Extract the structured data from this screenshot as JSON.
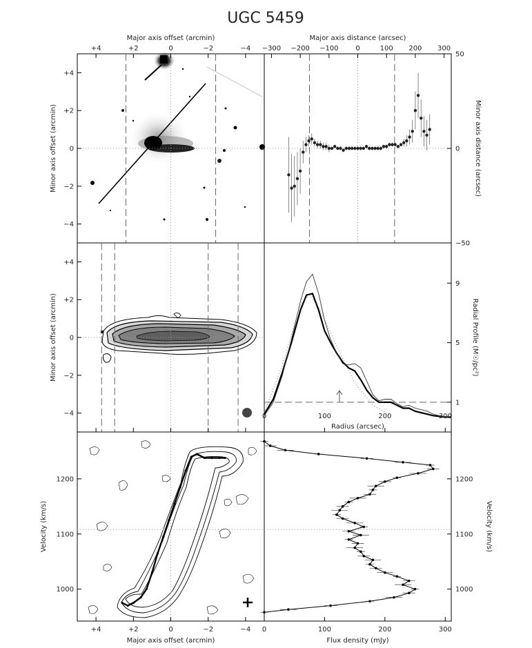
{
  "title": "UGC 5459",
  "chart_data": [
    {
      "type": "image",
      "panel": "optical",
      "xlabel_top": "Major axis offset (arcmin)",
      "ylabel": "Minor axis offset (arcmin)",
      "xlim": [
        5,
        -5
      ],
      "ylim": [
        -5,
        5
      ],
      "xticks": [
        {
          "v": 4,
          "t": "+4"
        },
        {
          "v": 2,
          "t": "+2"
        },
        {
          "v": 0,
          "t": "0"
        },
        {
          "v": -2,
          "t": "−2"
        },
        {
          "v": -4,
          "t": "−4"
        }
      ],
      "yticks": [
        {
          "v": 4,
          "t": "+4"
        },
        {
          "v": 2,
          "t": "+2"
        },
        {
          "v": 0,
          "t": "0"
        },
        {
          "v": -2,
          "t": "−2"
        },
        {
          "v": -4,
          "t": "−4"
        }
      ]
    },
    {
      "type": "scatter",
      "panel": "warp",
      "xlabel_top": "Major axis distance (arcsec)",
      "ylabel_right": "Minor axis distance (arcsec)",
      "xlim": [
        -325,
        325
      ],
      "ylim": [
        -50,
        50
      ],
      "xticks": [
        {
          "v": -300,
          "t": "−300"
        },
        {
          "v": -200,
          "t": "−200"
        },
        {
          "v": -100,
          "t": "−100"
        },
        {
          "v": 0,
          "t": "0"
        },
        {
          "v": 100,
          "t": "100"
        },
        {
          "v": 200,
          "t": "200"
        },
        {
          "v": 300,
          "t": "300"
        }
      ],
      "yticks": [
        {
          "v": 50,
          "t": "50"
        },
        {
          "v": 0,
          "t": "0"
        },
        {
          "v": -50,
          "t": "−50"
        }
      ],
      "x": [
        -240,
        -230,
        -220,
        -210,
        -200,
        -190,
        -180,
        -170,
        -160,
        -150,
        -140,
        -130,
        -120,
        -110,
        -100,
        -90,
        -80,
        -70,
        -60,
        -50,
        -40,
        -30,
        -20,
        -10,
        0,
        10,
        20,
        30,
        40,
        50,
        60,
        70,
        80,
        90,
        100,
        110,
        120,
        130,
        140,
        150,
        160,
        170,
        180,
        190,
        200,
        210,
        220,
        230,
        240,
        250
      ],
      "y": [
        -14,
        -21,
        -20,
        -16,
        -12,
        -2,
        2,
        4,
        5,
        3,
        2,
        2,
        1,
        1,
        0,
        0,
        1,
        0,
        0,
        -1,
        0,
        0,
        0,
        0,
        0,
        0,
        0,
        1,
        0,
        0,
        0,
        0,
        0,
        1,
        1,
        2,
        2,
        2,
        1,
        2,
        3,
        4,
        6,
        9,
        20,
        28,
        16,
        9,
        7,
        10
      ],
      "err": [
        20,
        18,
        16,
        14,
        12,
        6,
        4,
        3,
        3,
        2,
        2,
        2,
        2,
        2,
        2,
        1,
        1,
        1,
        1,
        1,
        1,
        1,
        1,
        1,
        1,
        1,
        1,
        1,
        1,
        1,
        1,
        1,
        1,
        1,
        1,
        1,
        1,
        1,
        1,
        1,
        2,
        3,
        4,
        6,
        10,
        12,
        10,
        8,
        8,
        8
      ]
    },
    {
      "type": "contour",
      "panel": "hi-map",
      "ylabel": "Minor axis offset (arcmin)",
      "xlim": [
        5,
        -5
      ],
      "ylim": [
        -5,
        5
      ],
      "yticks": [
        {
          "v": 4,
          "t": "+4"
        },
        {
          "v": 2,
          "t": "+2"
        },
        {
          "v": 0,
          "t": "0"
        },
        {
          "v": -2,
          "t": "−2"
        },
        {
          "v": -4,
          "t": "−4"
        }
      ]
    },
    {
      "type": "line",
      "panel": "radial-profile",
      "xlabel": "Radius (arcsec)",
      "ylabel_right": "Radial Profile (M☉/pc²)",
      "xlim": [
        0,
        310
      ],
      "ylim": [
        -1,
        11.7
      ],
      "xticks": [
        {
          "v": 0,
          "t": "0"
        },
        {
          "v": 100,
          "t": "100"
        },
        {
          "v": 200,
          "t": "200"
        },
        {
          "v": 300,
          "t": "300"
        }
      ],
      "yticks": [
        {
          "v": 9,
          "t": "9"
        },
        {
          "v": 5,
          "t": "5"
        },
        {
          "v": 1,
          "t": "1"
        }
      ],
      "series": [
        {
          "x": [
            0,
            15,
            30,
            45,
            60,
            70,
            80,
            90,
            100,
            110,
            120,
            130,
            140,
            150,
            160,
            170,
            180,
            190,
            200,
            210,
            220,
            230,
            240,
            250,
            260,
            270,
            280,
            290,
            300,
            310
          ],
          "y": [
            0.2,
            1.2,
            3.0,
            5.0,
            7.2,
            8.2,
            8.3,
            7.2,
            5.8,
            5.0,
            4.3,
            3.7,
            3.3,
            3.1,
            2.5,
            1.8,
            1.3,
            1.0,
            1.0,
            1.0,
            0.8,
            0.6,
            0.6,
            0.4,
            0.3,
            0.2,
            0.1,
            0.05,
            0,
            0
          ]
        },
        {
          "x": [
            0,
            15,
            30,
            45,
            60,
            70,
            80,
            90,
            100,
            110,
            120,
            130,
            140,
            150,
            160,
            170,
            180,
            190,
            200,
            210,
            220,
            230,
            240,
            250,
            260,
            270,
            280,
            290,
            300,
            310
          ],
          "y": [
            0.1,
            1.0,
            2.8,
            5.2,
            7.8,
            9.1,
            9.6,
            8.3,
            6.5,
            5.2,
            4.3,
            3.6,
            3.5,
            3.6,
            3.3,
            2.4,
            1.5,
            1.1,
            1.2,
            1.2,
            0.9,
            0.7,
            0.8,
            0.6,
            0.5,
            0.4,
            0.2,
            0.1,
            0,
            0
          ]
        },
        {
          "x": [
            0,
            30,
            60,
            75,
            90,
            120,
            150,
            180,
            210
          ],
          "y": [
            0.3,
            3.5,
            7.6,
            8.2,
            7.4,
            4.8,
            2.3,
            0.8,
            0.1
          ]
        }
      ]
    },
    {
      "type": "contour",
      "panel": "pv-diagram",
      "xlabel": "Major axis offset (arcmin)",
      "ylabel": "Velocity (km/s)",
      "xlim": [
        5,
        -5
      ],
      "ylim": [
        942,
        1285
      ],
      "xticks": [
        {
          "v": 4,
          "t": "+4"
        },
        {
          "v": 2,
          "t": "+2"
        },
        {
          "v": 0,
          "t": "0"
        },
        {
          "v": -2,
          "t": "−2"
        },
        {
          "v": -4,
          "t": "−4"
        }
      ],
      "yticks": [
        {
          "v": 1200,
          "t": "1200"
        },
        {
          "v": 1100,
          "t": "1100"
        },
        {
          "v": 1000,
          "t": "1000"
        }
      ],
      "rotation_curve": {
        "x": [
          2.6,
          2.3,
          2.0,
          1.6,
          1.3,
          1.0,
          0.7,
          0.4,
          0.1,
          -0.2,
          -0.5,
          -0.8,
          -1.1,
          -1.4,
          -1.8,
          -2.2,
          -2.6,
          -2.9
        ],
        "y": [
          975,
          970,
          975,
          985,
          1000,
          1030,
          1065,
          1095,
          1125,
          1155,
          1185,
          1215,
          1240,
          1245,
          1238,
          1238,
          1238,
          1238
        ]
      }
    },
    {
      "type": "line",
      "panel": "global-profile",
      "xlabel": "Flux density (mJy)",
      "ylabel_right": "Velocity (km/s)",
      "xlim": [
        0,
        310
      ],
      "ylim": [
        942,
        1285
      ],
      "xticks": [
        {
          "v": 0,
          "t": "0"
        },
        {
          "v": 100,
          "t": "100"
        },
        {
          "v": 200,
          "t": "200"
        },
        {
          "v": 300,
          "t": "300"
        }
      ],
      "yticks": [
        {
          "v": 1200,
          "t": "1200"
        },
        {
          "v": 1100,
          "t": "1100"
        },
        {
          "v": 1000,
          "t": "1000"
        }
      ],
      "series": [
        {
          "velocity": [
            1268,
            1260,
            1252,
            1245,
            1237,
            1230,
            1225,
            1218,
            1210,
            1202,
            1195,
            1187,
            1180,
            1172,
            1165,
            1158,
            1150,
            1143,
            1135,
            1128,
            1120,
            1113,
            1105,
            1098,
            1090,
            1083,
            1075,
            1068,
            1060,
            1053,
            1045,
            1038,
            1030,
            1023,
            1015,
            1008,
            1000,
            993,
            985,
            978,
            970,
            963,
            958
          ],
          "flux": [
            0,
            10,
            35,
            90,
            170,
            230,
            275,
            280,
            255,
            220,
            200,
            185,
            180,
            175,
            155,
            140,
            130,
            125,
            120,
            130,
            150,
            165,
            140,
            160,
            140,
            155,
            150,
            160,
            165,
            180,
            175,
            185,
            200,
            220,
            240,
            230,
            250,
            240,
            215,
            175,
            110,
            40,
            0
          ]
        }
      ]
    }
  ]
}
